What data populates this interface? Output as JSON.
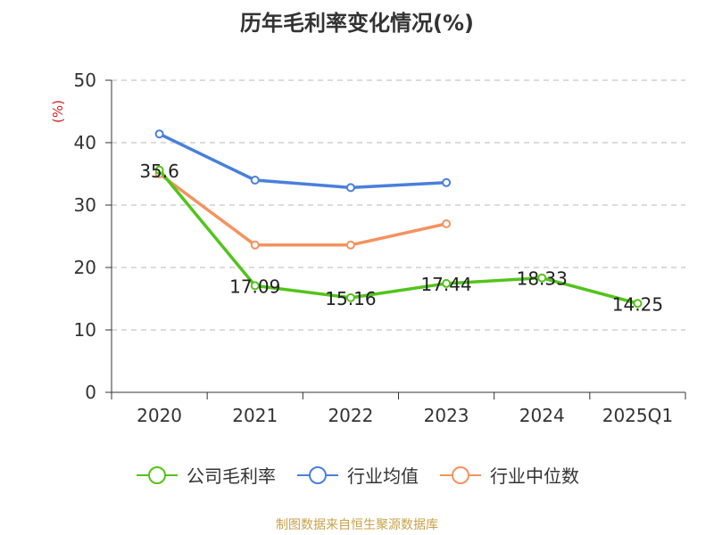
{
  "chart_data": {
    "type": "line",
    "title": "历年毛利率变化情况(%)",
    "ylabel": "(%)",
    "ylim": [
      0,
      50
    ],
    "yticks": [
      "0",
      "10",
      "20",
      "30",
      "40",
      "50"
    ],
    "categories": [
      "2020",
      "2021",
      "2022",
      "2023",
      "2024",
      "2025Q1"
    ],
    "grid": true,
    "legend_position": "bottom",
    "series": [
      {
        "name": "公司毛利率",
        "color": "#52c41a",
        "values": [
          35.6,
          17.09,
          15.16,
          17.44,
          18.33,
          14.25
        ],
        "labels": [
          "35.6",
          "17.09",
          "15.16",
          "17.44",
          "18.33",
          "14.25"
        ]
      },
      {
        "name": "行业均值",
        "color": "#4a7fdc",
        "values": [
          41.4,
          34.0,
          32.8,
          33.6,
          null,
          null
        ]
      },
      {
        "name": "行业中位数",
        "color": "#f4925e",
        "values": [
          35.0,
          23.6,
          23.6,
          27.0,
          null,
          null
        ]
      }
    ]
  },
  "source": "制图数据来自恒生聚源数据库"
}
